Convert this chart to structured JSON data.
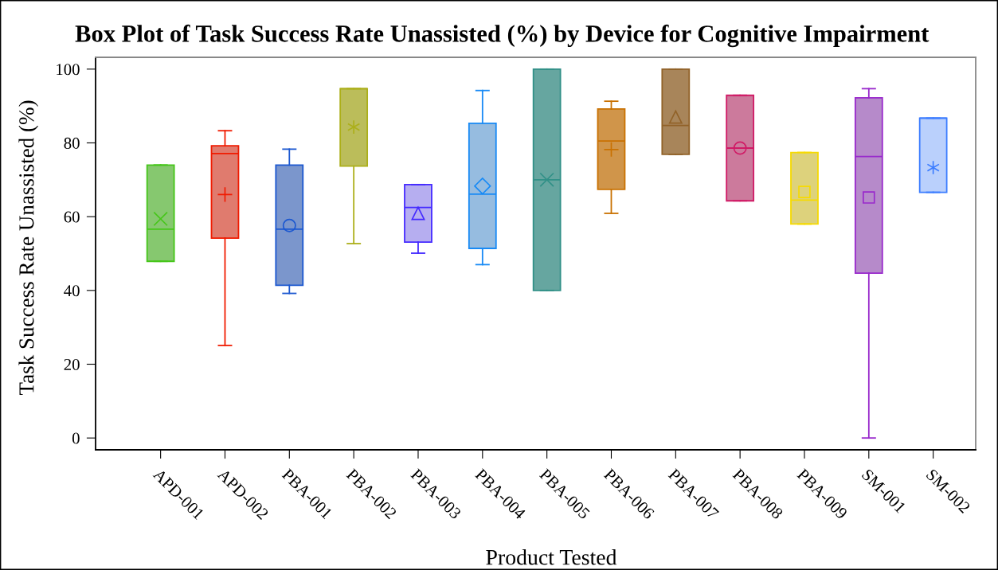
{
  "chart_data": {
    "type": "box",
    "title": "Box Plot of Task Success Rate Unassisted (%) by Device for Cognitive Impairment",
    "xlabel": "Product Tested",
    "ylabel": "Task Success Rate Unassisted (%)",
    "categories": [
      "APD-001",
      "APD-002",
      "PBA-001",
      "PBA-002",
      "PBA-003",
      "PBA-004",
      "PBA-005",
      "PBA-006",
      "PBA-007",
      "PBA-008",
      "PBA-009",
      "SM-001",
      "SM-002"
    ],
    "ylim": [
      -3.2,
      103.2
    ],
    "yticks": [
      0,
      20,
      40,
      60,
      80,
      100
    ],
    "grid": false,
    "series": [
      {
        "color": "#86c86f",
        "marker": "cross",
        "boxes": [
          {
            "low": 47.9,
            "q1": 47.9,
            "median": 56.6,
            "q3": 74.0,
            "high": 74.0,
            "mean": 59.4
          },
          null,
          null,
          null,
          null,
          null,
          null,
          null,
          null,
          null,
          null,
          null,
          null
        ]
      },
      {
        "color": "#e07b6e",
        "marker": "plus",
        "boxes": [
          null,
          {
            "low": 25.1,
            "q1": 54.2,
            "median": 77.1,
            "q3": 79.2,
            "high": 83.3,
            "mean": 66.0
          },
          null,
          null,
          null,
          null,
          null,
          null,
          null,
          null,
          null,
          null,
          null
        ]
      },
      {
        "color": "#7b96cc",
        "marker": "circle",
        "boxes": [
          null,
          null,
          {
            "low": 39.2,
            "q1": 41.4,
            "median": 56.6,
            "q3": 74.0,
            "high": 78.3,
            "mean": 57.6
          },
          null,
          null,
          null,
          null,
          null,
          null,
          null,
          null,
          null,
          null
        ]
      },
      {
        "color": "#bbbd5a",
        "marker": "star",
        "boxes": [
          null,
          null,
          null,
          {
            "low": 52.7,
            "q1": 73.7,
            "median": 94.7,
            "q3": 94.7,
            "high": 94.7,
            "mean": 84.3
          },
          null,
          null,
          null,
          null,
          null,
          null,
          null,
          null,
          null
        ]
      },
      {
        "color": "#b6aef0",
        "marker": "triangle",
        "boxes": [
          null,
          null,
          null,
          null,
          {
            "low": 50.1,
            "q1": 53.1,
            "median": 62.5,
            "q3": 68.7,
            "high": 68.7,
            "mean": 60.9
          },
          null,
          null,
          null,
          null,
          null,
          null,
          null,
          null
        ]
      },
      {
        "color": "#96bce0",
        "marker": "diamond",
        "boxes": [
          null,
          null,
          null,
          null,
          null,
          {
            "low": 47.0,
            "q1": 51.4,
            "median": 66.1,
            "q3": 85.3,
            "high": 94.2,
            "mean": 68.3
          },
          null,
          null,
          null,
          null,
          null,
          null,
          null
        ]
      },
      {
        "color": "#66a6a0",
        "marker": "cross",
        "boxes": [
          null,
          null,
          null,
          null,
          null,
          null,
          {
            "low": 40.0,
            "q1": 40.0,
            "median": 70.0,
            "q3": 100.0,
            "high": 100.0,
            "mean": 70.0
          },
          null,
          null,
          null,
          null,
          null,
          null
        ]
      },
      {
        "color": "#d0954a",
        "marker": "plus",
        "boxes": [
          null,
          null,
          null,
          null,
          null,
          null,
          null,
          {
            "low": 60.9,
            "q1": 67.4,
            "median": 80.5,
            "q3": 89.2,
            "high": 91.3,
            "mean": 78.2
          },
          null,
          null,
          null,
          null,
          null
        ]
      },
      {
        "color": "#a8855a",
        "marker": "triangle",
        "boxes": [
          null,
          null,
          null,
          null,
          null,
          null,
          null,
          null,
          {
            "low": 76.9,
            "q1": 76.9,
            "median": 84.7,
            "q3": 100.0,
            "high": 100.0,
            "mean": 87.0
          },
          null,
          null,
          null,
          null
        ]
      },
      {
        "color": "#cc7a9c",
        "marker": "circle",
        "boxes": [
          null,
          null,
          null,
          null,
          null,
          null,
          null,
          null,
          null,
          {
            "low": 64.3,
            "q1": 64.3,
            "median": 78.6,
            "q3": 92.9,
            "high": 92.9,
            "mean": 78.6
          },
          null,
          null,
          null
        ]
      },
      {
        "color": "#ddd27c",
        "marker": "square",
        "boxes": [
          null,
          null,
          null,
          null,
          null,
          null,
          null,
          null,
          null,
          null,
          {
            "low": 58.0,
            "q1": 58.0,
            "median": 64.5,
            "q3": 77.4,
            "high": 77.4,
            "mean": 66.7
          },
          null,
          null
        ]
      },
      {
        "color": "#b68aca",
        "marker": "square",
        "boxes": [
          null,
          null,
          null,
          null,
          null,
          null,
          null,
          null,
          null,
          null,
          null,
          {
            "low": 0.0,
            "q1": 44.7,
            "median": 76.3,
            "q3": 92.2,
            "high": 94.7,
            "mean": 65.2
          },
          null
        ]
      },
      {
        "color": "#bad0fc",
        "marker": "star",
        "boxes": [
          null,
          null,
          null,
          null,
          null,
          null,
          null,
          null,
          null,
          null,
          null,
          null,
          {
            "low": 66.6,
            "q1": 66.6,
            "median": 86.7,
            "q3": 86.7,
            "high": 86.7,
            "mean": 73.3
          }
        ]
      }
    ]
  }
}
